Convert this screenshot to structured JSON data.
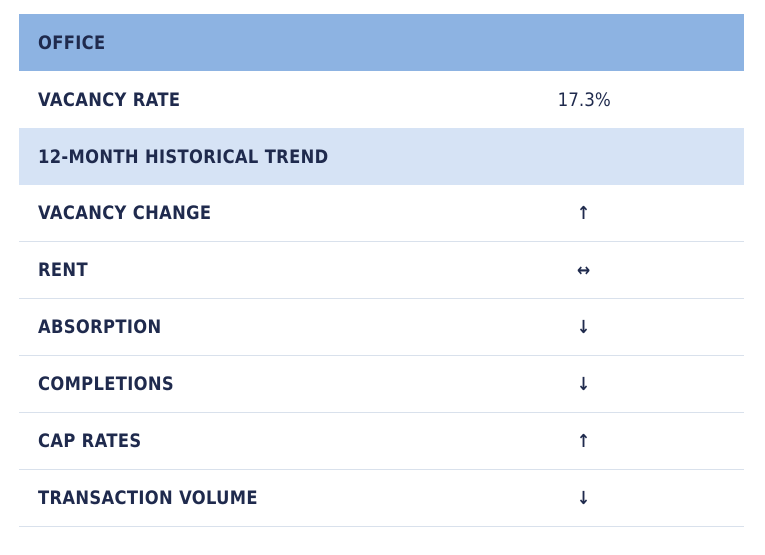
{
  "table": {
    "header": "OFFICE",
    "vacancy_rate": {
      "label": "VACANCY RATE",
      "value": "17.3%"
    },
    "trend_header": "12-MONTH HISTORICAL TREND",
    "rows": [
      {
        "label": "VACANCY CHANGE",
        "arrow": "↑",
        "icon": "up-arrow-icon"
      },
      {
        "label": "RENT",
        "arrow": "↔",
        "icon": "left-right-arrow-icon"
      },
      {
        "label": "ABSORPTION",
        "arrow": "↓",
        "icon": "down-arrow-icon"
      },
      {
        "label": "COMPLETIONS",
        "arrow": "↓",
        "icon": "down-arrow-icon"
      },
      {
        "label": "CAP RATES",
        "arrow": "↑",
        "icon": "up-arrow-icon"
      },
      {
        "label": "TRANSACTION VOLUME",
        "arrow": "↓",
        "icon": "down-arrow-icon"
      }
    ]
  },
  "colors": {
    "header_bg": "#8db3e2",
    "subheader_bg": "#d6e3f5",
    "text": "#1f2a4d",
    "divider": "#d9e1ec"
  }
}
